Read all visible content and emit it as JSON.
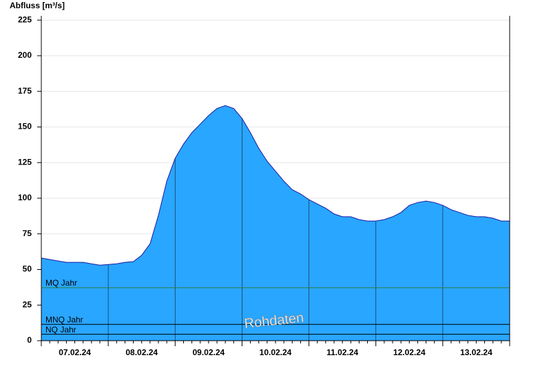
{
  "chart_data": {
    "type": "area",
    "y_label": "Abfluss [m³/s]",
    "watermark": "Rohdaten",
    "categories": [
      null,
      null,
      null,
      null,
      "07.02.24",
      null,
      null,
      null,
      null,
      null,
      null,
      null,
      "08.02.24",
      null,
      null,
      null,
      null,
      null,
      null,
      null,
      "09.02.24",
      null,
      null,
      null,
      null,
      null,
      null,
      null,
      "10.02.24",
      null,
      null,
      null,
      null,
      null,
      null,
      null,
      "11.02.24",
      null,
      null,
      null,
      null,
      null,
      null,
      null,
      "12.02.24",
      null,
      null,
      null,
      null,
      null,
      null,
      null,
      "13.02.24",
      null,
      null,
      null
    ],
    "series": [
      {
        "color": "#29a6ff",
        "line_color": "#1a1aa0",
        "values": [
          58,
          57,
          56,
          55,
          55,
          55,
          54,
          53,
          53.5,
          54,
          55,
          55.5,
          60,
          68,
          88,
          112,
          128,
          138,
          146,
          152,
          158,
          163,
          165,
          163,
          156,
          146,
          135,
          126,
          119,
          112,
          106,
          103,
          99,
          96,
          93,
          89,
          87,
          87,
          85,
          84,
          84,
          85,
          87,
          90,
          95,
          97,
          98,
          97,
          95,
          92,
          90,
          88,
          87,
          87,
          86,
          84
        ]
      }
    ],
    "reference_lines": [
      {
        "label": "MQ Jahr",
        "value": 37.2,
        "color": "#2e7d32"
      },
      {
        "label": "MNQ Jahr",
        "value": 11.5,
        "color": "#000000"
      },
      {
        "label": "NQ Jahr",
        "value": 4.5,
        "color": "#000000"
      }
    ],
    "ylim": [
      0,
      228
    ],
    "yticks": [
      0,
      25,
      50,
      75,
      100,
      125,
      150,
      175,
      200,
      225
    ],
    "grid": true
  }
}
